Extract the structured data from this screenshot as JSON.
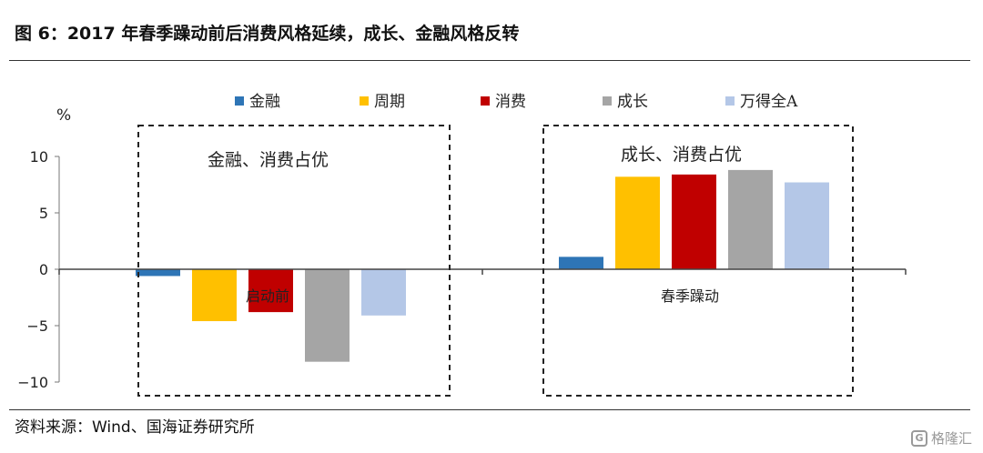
{
  "title": "图 6：2017 年春季躁动前后消费风格延续，成长、金融风格反转",
  "source": "资料来源：Wind、国海证券研究所",
  "watermark": "格隆汇",
  "chart_data": {
    "type": "bar",
    "unit_label": "%",
    "categories": [
      "启动前",
      "春季躁动"
    ],
    "series": [
      {
        "name": "金融",
        "color": "#2E75B6",
        "values": [
          -0.6,
          1.1
        ]
      },
      {
        "name": "周期",
        "color": "#FFC000",
        "values": [
          -4.6,
          8.2
        ]
      },
      {
        "name": "消费",
        "color": "#C00000",
        "values": [
          -3.8,
          8.4
        ]
      },
      {
        "name": "成长",
        "color": "#A5A5A5",
        "values": [
          -8.2,
          8.8
        ]
      },
      {
        "name": "万得全A",
        "color": "#B4C7E7",
        "values": [
          -4.1,
          7.7
        ]
      }
    ],
    "ylim": [
      -10,
      10
    ],
    "yticks": [
      10,
      5,
      0,
      -5,
      -10
    ],
    "ytick_labels": [
      "10",
      "5",
      "0",
      "−5",
      "−10"
    ],
    "annotations": [
      "金融、消费占优",
      "成长、消费占优"
    ],
    "legend_position": "top",
    "grid": false
  }
}
